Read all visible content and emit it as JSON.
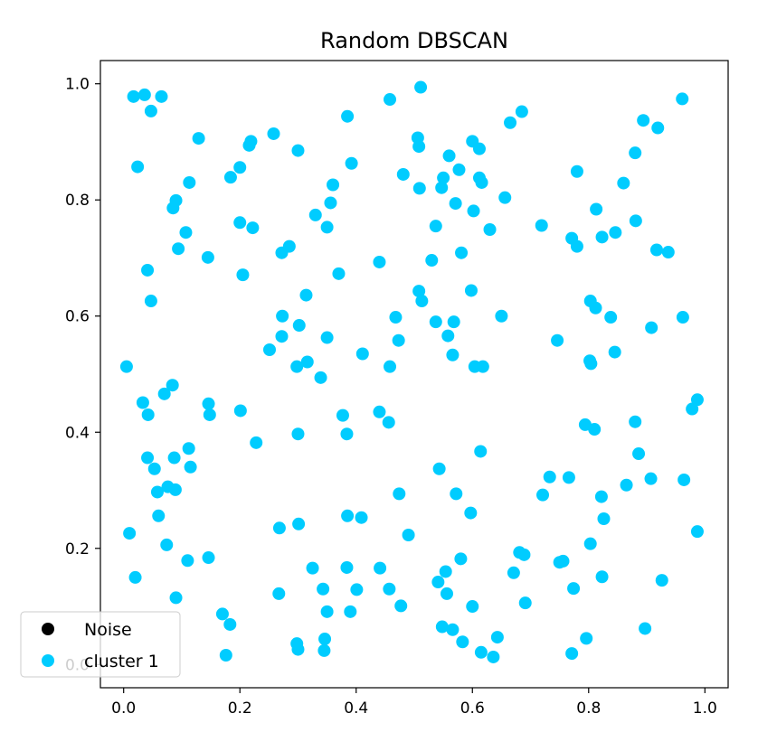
{
  "chart_data": {
    "type": "scatter",
    "title": "Random DBSCAN",
    "xlabel": "",
    "ylabel": "",
    "xlim": [
      -0.04,
      1.04
    ],
    "ylim": [
      -0.04,
      1.04
    ],
    "xticks": [
      0.0,
      0.2,
      0.4,
      0.6,
      0.8,
      1.0
    ],
    "yticks": [
      0.0,
      0.2,
      0.4,
      0.6,
      0.8,
      1.0
    ],
    "xtick_labels": [
      "0.0",
      "0.2",
      "0.4",
      "0.6",
      "0.8",
      "1.0"
    ],
    "ytick_labels": [
      "0.0",
      "0.2",
      "0.4",
      "0.6",
      "0.8",
      "1.0"
    ],
    "grid": false,
    "legend_position": "lower-left",
    "series": [
      {
        "name": "Noise",
        "color": "#000000",
        "points": []
      },
      {
        "name": "cluster 1",
        "color": "#00ccff",
        "points": [
          [
            0.017,
            0.978
          ],
          [
            0.036,
            0.981
          ],
          [
            0.065,
            0.978
          ],
          [
            0.047,
            0.953
          ],
          [
            0.024,
            0.857
          ],
          [
            0.041,
            0.679
          ],
          [
            0.047,
            0.626
          ],
          [
            0.005,
            0.513
          ],
          [
            0.033,
            0.451
          ],
          [
            0.042,
            0.43
          ],
          [
            0.07,
            0.466
          ],
          [
            0.084,
            0.481
          ],
          [
            0.041,
            0.356
          ],
          [
            0.053,
            0.337
          ],
          [
            0.058,
            0.297
          ],
          [
            0.06,
            0.256
          ],
          [
            0.076,
            0.306
          ],
          [
            0.089,
            0.301
          ],
          [
            0.087,
            0.356
          ],
          [
            0.01,
            0.226
          ],
          [
            0.02,
            0.15
          ],
          [
            0.074,
            0.206
          ],
          [
            0.09,
            0.115
          ],
          [
            0.11,
            0.179
          ],
          [
            0.129,
            0.906
          ],
          [
            0.113,
            0.83
          ],
          [
            0.09,
            0.799
          ],
          [
            0.085,
            0.786
          ],
          [
            0.107,
            0.744
          ],
          [
            0.094,
            0.716
          ],
          [
            0.145,
            0.701
          ],
          [
            0.146,
            0.449
          ],
          [
            0.148,
            0.43
          ],
          [
            0.112,
            0.372
          ],
          [
            0.115,
            0.34
          ],
          [
            0.146,
            0.184
          ],
          [
            0.17,
            0.087
          ],
          [
            0.183,
            0.069
          ],
          [
            0.176,
            0.016
          ],
          [
            0.184,
            0.839
          ],
          [
            0.2,
            0.856
          ],
          [
            0.216,
            0.894
          ],
          [
            0.219,
            0.901
          ],
          [
            0.2,
            0.761
          ],
          [
            0.222,
            0.752
          ],
          [
            0.205,
            0.671
          ],
          [
            0.201,
            0.437
          ],
          [
            0.228,
            0.382
          ],
          [
            0.258,
            0.914
          ],
          [
            0.3,
            0.885
          ],
          [
            0.272,
            0.709
          ],
          [
            0.285,
            0.72
          ],
          [
            0.273,
            0.6
          ],
          [
            0.272,
            0.565
          ],
          [
            0.251,
            0.542
          ],
          [
            0.302,
            0.584
          ],
          [
            0.298,
            0.513
          ],
          [
            0.316,
            0.521
          ],
          [
            0.314,
            0.636
          ],
          [
            0.339,
            0.494
          ],
          [
            0.3,
            0.397
          ],
          [
            0.268,
            0.235
          ],
          [
            0.301,
            0.242
          ],
          [
            0.267,
            0.122
          ],
          [
            0.325,
            0.166
          ],
          [
            0.343,
            0.13
          ],
          [
            0.35,
            0.091
          ],
          [
            0.298,
            0.036
          ],
          [
            0.3,
            0.026
          ],
          [
            0.346,
            0.044
          ],
          [
            0.345,
            0.024
          ],
          [
            0.33,
            0.774
          ],
          [
            0.356,
            0.795
          ],
          [
            0.35,
            0.753
          ],
          [
            0.36,
            0.826
          ],
          [
            0.37,
            0.673
          ],
          [
            0.35,
            0.563
          ],
          [
            0.385,
            0.944
          ],
          [
            0.392,
            0.863
          ],
          [
            0.377,
            0.429
          ],
          [
            0.384,
            0.397
          ],
          [
            0.385,
            0.256
          ],
          [
            0.384,
            0.167
          ],
          [
            0.39,
            0.091
          ],
          [
            0.401,
            0.129
          ],
          [
            0.409,
            0.253
          ],
          [
            0.411,
            0.535
          ],
          [
            0.44,
            0.693
          ],
          [
            0.44,
            0.435
          ],
          [
            0.456,
            0.417
          ],
          [
            0.458,
            0.513
          ],
          [
            0.458,
            0.973
          ],
          [
            0.468,
            0.598
          ],
          [
            0.473,
            0.558
          ],
          [
            0.474,
            0.294
          ],
          [
            0.441,
            0.166
          ],
          [
            0.457,
            0.13
          ],
          [
            0.477,
            0.101
          ],
          [
            0.481,
            0.844
          ],
          [
            0.506,
            0.907
          ],
          [
            0.508,
            0.892
          ],
          [
            0.511,
            0.994
          ],
          [
            0.509,
            0.82
          ],
          [
            0.49,
            0.223
          ],
          [
            0.508,
            0.643
          ],
          [
            0.513,
            0.626
          ],
          [
            0.53,
            0.696
          ],
          [
            0.537,
            0.755
          ],
          [
            0.537,
            0.59
          ],
          [
            0.543,
            0.337
          ],
          [
            0.541,
            0.142
          ],
          [
            0.554,
            0.16
          ],
          [
            0.556,
            0.122
          ],
          [
            0.547,
            0.821
          ],
          [
            0.55,
            0.838
          ],
          [
            0.56,
            0.876
          ],
          [
            0.568,
            0.59
          ],
          [
            0.558,
            0.566
          ],
          [
            0.566,
            0.533
          ],
          [
            0.548,
            0.065
          ],
          [
            0.566,
            0.06
          ],
          [
            0.577,
            0.852
          ],
          [
            0.571,
            0.794
          ],
          [
            0.581,
            0.709
          ],
          [
            0.572,
            0.294
          ],
          [
            0.58,
            0.182
          ],
          [
            0.583,
            0.039
          ],
          [
            0.6,
            0.901
          ],
          [
            0.612,
            0.888
          ],
          [
            0.612,
            0.838
          ],
          [
            0.616,
            0.83
          ],
          [
            0.602,
            0.781
          ],
          [
            0.63,
            0.749
          ],
          [
            0.598,
            0.644
          ],
          [
            0.604,
            0.513
          ],
          [
            0.618,
            0.513
          ],
          [
            0.614,
            0.367
          ],
          [
            0.597,
            0.261
          ],
          [
            0.6,
            0.1
          ],
          [
            0.615,
            0.021
          ],
          [
            0.636,
            0.013
          ],
          [
            0.643,
            0.047
          ],
          [
            0.656,
            0.804
          ],
          [
            0.65,
            0.6
          ],
          [
            0.665,
            0.933
          ],
          [
            0.685,
            0.952
          ],
          [
            0.671,
            0.158
          ],
          [
            0.681,
            0.193
          ],
          [
            0.689,
            0.189
          ],
          [
            0.691,
            0.106
          ],
          [
            0.719,
            0.756
          ],
          [
            0.721,
            0.292
          ],
          [
            0.733,
            0.323
          ],
          [
            0.746,
            0.558
          ],
          [
            0.75,
            0.176
          ],
          [
            0.756,
            0.178
          ],
          [
            0.766,
            0.322
          ],
          [
            0.771,
            0.734
          ],
          [
            0.78,
            0.72
          ],
          [
            0.78,
            0.849
          ],
          [
            0.774,
            0.131
          ],
          [
            0.771,
            0.019
          ],
          [
            0.796,
            0.045
          ],
          [
            0.813,
            0.784
          ],
          [
            0.823,
            0.736
          ],
          [
            0.846,
            0.744
          ],
          [
            0.803,
            0.626
          ],
          [
            0.812,
            0.614
          ],
          [
            0.838,
            0.598
          ],
          [
            0.804,
            0.518
          ],
          [
            0.802,
            0.523
          ],
          [
            0.845,
            0.538
          ],
          [
            0.794,
            0.413
          ],
          [
            0.81,
            0.405
          ],
          [
            0.822,
            0.289
          ],
          [
            0.826,
            0.251
          ],
          [
            0.803,
            0.208
          ],
          [
            0.823,
            0.151
          ],
          [
            0.86,
            0.829
          ],
          [
            0.88,
            0.881
          ],
          [
            0.881,
            0.764
          ],
          [
            0.894,
            0.937
          ],
          [
            0.919,
            0.924
          ],
          [
            0.917,
            0.714
          ],
          [
            0.937,
            0.71
          ],
          [
            0.908,
            0.58
          ],
          [
            0.88,
            0.418
          ],
          [
            0.886,
            0.363
          ],
          [
            0.865,
            0.309
          ],
          [
            0.907,
            0.32
          ],
          [
            0.926,
            0.145
          ],
          [
            0.897,
            0.062
          ],
          [
            0.961,
            0.974
          ],
          [
            0.962,
            0.598
          ],
          [
            0.978,
            0.44
          ],
          [
            0.987,
            0.456
          ],
          [
            0.964,
            0.318
          ],
          [
            0.987,
            0.229
          ]
        ]
      }
    ]
  }
}
